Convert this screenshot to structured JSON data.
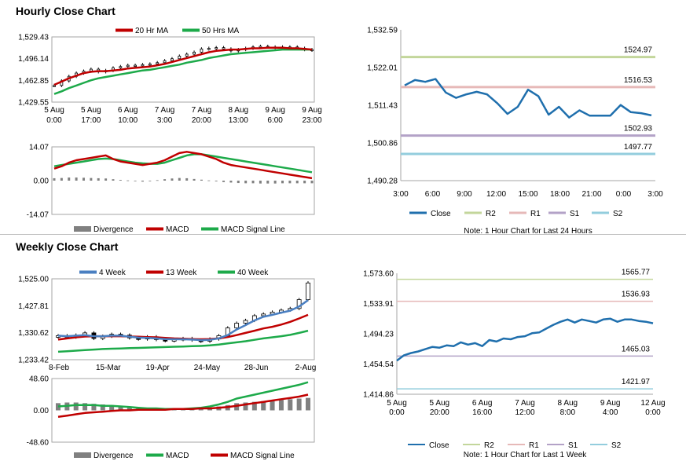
{
  "sections": {
    "hourly_title": "Hourly Close Chart",
    "weekly_title": "Weekly Close Chart"
  },
  "colors": {
    "red": "#c00000",
    "green": "#1daa4a",
    "blue": "#4a7fc1",
    "close_blue": "#1f6fad",
    "r2": "#c3d69b",
    "r1": "#e6b9b8",
    "s1": "#b3a2c7",
    "s2": "#93cddd",
    "divergence": "#808080"
  },
  "chart_data": [
    {
      "id": "hourly_price",
      "type": "line",
      "title": "Hourly Close Chart",
      "legend": [
        "20 Hr MA",
        "50 Hrs MA"
      ],
      "yticks": [
        "1,529.43",
        "1,496.14",
        "1,462.85",
        "1,429.55"
      ],
      "ylim": [
        1429.55,
        1529.43
      ],
      "xticks": [
        [
          "5 Aug",
          "0:00"
        ],
        [
          "5 Aug",
          "17:00"
        ],
        [
          "6 Aug",
          "10:00"
        ],
        [
          "7 Aug",
          "3:00"
        ],
        [
          "7 Aug",
          "20:00"
        ],
        [
          "8 Aug",
          "13:00"
        ],
        [
          "9 Aug",
          "6:00"
        ],
        [
          "9 Aug",
          "23:00"
        ]
      ],
      "series": [
        {
          "name": "Close",
          "values": [
            1455,
            1462,
            1469,
            1474,
            1477,
            1480,
            1476,
            1478,
            1482,
            1484,
            1486,
            1485,
            1487,
            1488,
            1490,
            1493,
            1496,
            1500,
            1503,
            1506,
            1511,
            1512,
            1513,
            1511,
            1508,
            1510,
            1512,
            1514,
            1515,
            1514,
            1513,
            1514,
            1514,
            1512,
            1510,
            1509
          ]
        },
        {
          "name": "20 Hr MA",
          "values": [
            1456,
            1461,
            1466,
            1470,
            1474,
            1476,
            1477,
            1477,
            1478,
            1479,
            1481,
            1482,
            1483,
            1484,
            1486,
            1488,
            1491,
            1494,
            1497,
            1500,
            1503,
            1506,
            1508,
            1509,
            1510,
            1510,
            1511,
            1512,
            1512,
            1513,
            1513,
            1513,
            1512,
            1512,
            1511,
            1510
          ]
        },
        {
          "name": "50 Hrs MA",
          "values": [
            1442,
            1446,
            1451,
            1455,
            1459,
            1463,
            1466,
            1468,
            1470,
            1472,
            1474,
            1476,
            1478,
            1479,
            1481,
            1483,
            1485,
            1487,
            1490,
            1492,
            1494,
            1497,
            1499,
            1501,
            1503,
            1504,
            1505,
            1506,
            1507,
            1508,
            1509,
            1510,
            1510,
            1510,
            1510,
            1510
          ]
        }
      ]
    },
    {
      "id": "hourly_macd",
      "type": "line",
      "legend": [
        "Divergence",
        "MACD",
        "MACD Signal Line"
      ],
      "yticks": [
        "14.07",
        "0.00",
        "-14.07"
      ],
      "ylim": [
        -14.07,
        14.07
      ],
      "series": [
        {
          "name": "MACD",
          "values": [
            5,
            6,
            7.5,
            8.5,
            9,
            9.5,
            10,
            10.5,
            9,
            8,
            7.5,
            7,
            6.5,
            7,
            7.5,
            8.5,
            10,
            11.5,
            12,
            11.5,
            11,
            10,
            9,
            7.5,
            6.5,
            6,
            5.5,
            5,
            4.5,
            4,
            3.5,
            3,
            2.5,
            2,
            1.5,
            1
          ]
        },
        {
          "name": "MACD Signal Line",
          "values": [
            6,
            6.5,
            7,
            7.5,
            8,
            8.5,
            9,
            9.2,
            9,
            8.5,
            8,
            7.5,
            7.2,
            7,
            7,
            7.5,
            8.5,
            9.5,
            10.5,
            11,
            11,
            10.5,
            10,
            9.5,
            9,
            8.5,
            8,
            7.5,
            7,
            6.5,
            6,
            5.5,
            5,
            4.5,
            4,
            3.5
          ]
        },
        {
          "name": "Divergence",
          "values": [
            1,
            1.1,
            1.3,
            1.3,
            1.2,
            1.1,
            1,
            0.9,
            0.6,
            0.3,
            0.1,
            -0.2,
            -0.4,
            -0.2,
            0.2,
            0.6,
            0.9,
            1.1,
            1,
            0.7,
            0.4,
            0.1,
            -0.3,
            -0.6,
            -0.8,
            -1,
            -1.1,
            -1.1,
            -1.2,
            -1.2,
            -1.2,
            -1.1,
            -1.1,
            -1.1,
            -1.1,
            -1.1
          ]
        }
      ]
    },
    {
      "id": "hourly_close_24h",
      "type": "line",
      "yticks": [
        "1,532.59",
        "1,522.01",
        "1,511.43",
        "1,500.86",
        "1,490.28"
      ],
      "ylim": [
        1490.28,
        1532.59
      ],
      "xticks": [
        "3:00",
        "6:00",
        "9:00",
        "12:00",
        "15:00",
        "18:00",
        "21:00",
        "0:00",
        "3:00"
      ],
      "levels": [
        {
          "name": "R2",
          "value": 1524.97,
          "label": "1524.97"
        },
        {
          "name": "R1",
          "value": 1516.53,
          "label": "1516.53"
        },
        {
          "name": "S1",
          "value": 1502.93,
          "label": "1502.93"
        },
        {
          "name": "S2",
          "value": 1497.77,
          "label": "1497.77"
        }
      ],
      "series": [
        {
          "name": "Close",
          "values": [
            1517,
            1518.5,
            1518,
            1518.8,
            1515,
            1513.5,
            1514.5,
            1515.2,
            1514.5,
            1512,
            1509,
            1511,
            1515.8,
            1514,
            1508.8,
            1511,
            1508,
            1510,
            1508.5,
            1508.5,
            1508.5,
            1511.5,
            1509.5,
            1509.2,
            1508.6
          ]
        }
      ],
      "legend": [
        "Close",
        "R2",
        "R1",
        "S1",
        "S2"
      ],
      "note": "Note: 1 Hour Chart for Last 24 Hours"
    },
    {
      "id": "weekly_price",
      "type": "line",
      "title": "Weekly Close Chart",
      "legend": [
        "4 Week",
        "13 Week",
        "40 Week"
      ],
      "yticks": [
        "1,525.00",
        "1,427.81",
        "1,330.62",
        "1,233.42"
      ],
      "ylim": [
        1233.42,
        1525.0
      ],
      "xticks": [
        "8-Feb",
        "15-Mar",
        "19-Apr",
        "24-May",
        "28-Jun",
        "2-Aug"
      ],
      "series": [
        {
          "name": "Close",
          "values": [
            1320,
            1315,
            1322,
            1330,
            1310,
            1318,
            1325,
            1322,
            1312,
            1308,
            1316,
            1306,
            1302,
            1306,
            1310,
            1304,
            1300,
            1308,
            1320,
            1348,
            1365,
            1375,
            1392,
            1398,
            1405,
            1412,
            1418,
            1450,
            1510
          ]
        },
        {
          "name": "4 Week",
          "values": [
            1320,
            1318,
            1320,
            1322,
            1318,
            1318,
            1320,
            1320,
            1316,
            1313,
            1312,
            1310,
            1308,
            1307,
            1307,
            1306,
            1304,
            1305,
            1310,
            1322,
            1342,
            1358,
            1375,
            1388,
            1395,
            1403,
            1410,
            1425,
            1448
          ]
        },
        {
          "name": "13 Week",
          "values": [
            1306,
            1310,
            1314,
            1317,
            1318,
            1318,
            1318,
            1318,
            1317,
            1316,
            1315,
            1314,
            1312,
            1310,
            1309,
            1308,
            1307,
            1308,
            1310,
            1315,
            1322,
            1330,
            1338,
            1346,
            1352,
            1360,
            1370,
            1382,
            1395
          ]
        },
        {
          "name": "40 Week",
          "values": [
            1262,
            1264,
            1266,
            1268,
            1270,
            1272,
            1273,
            1274,
            1275,
            1276,
            1277,
            1278,
            1279,
            1280,
            1281,
            1282,
            1283,
            1285,
            1288,
            1292,
            1296,
            1300,
            1305,
            1310,
            1314,
            1318,
            1323,
            1330,
            1338
          ]
        }
      ]
    },
    {
      "id": "weekly_macd",
      "type": "line",
      "legend": [
        "Divergence",
        "MACD",
        "MACD Signal Line"
      ],
      "yticks": [
        "48.60",
        "0.00",
        "-48.60"
      ],
      "ylim": [
        -48.6,
        48.6
      ],
      "series": [
        {
          "name": "MACD",
          "values": [
            6,
            7,
            8,
            8,
            8,
            7,
            7,
            6,
            5,
            4,
            3,
            3,
            2,
            2,
            2,
            3,
            4,
            6,
            9,
            13,
            18,
            21,
            24,
            27,
            30,
            33,
            36,
            39,
            43
          ]
        },
        {
          "name": "MACD Signal Line",
          "values": [
            -10,
            -8,
            -6,
            -4,
            -3,
            -2,
            -1,
            0,
            0,
            1,
            1,
            1,
            1,
            2,
            2,
            2,
            3,
            3,
            4,
            5,
            7,
            9,
            11,
            13,
            15,
            17,
            19,
            21,
            24
          ]
        },
        {
          "name": "Divergence",
          "values": [
            11,
            12,
            12,
            11,
            10,
            9,
            8,
            7,
            5,
            4,
            3,
            2,
            2,
            1,
            1,
            1,
            2,
            4,
            6,
            8,
            11,
            12,
            13,
            14,
            15,
            16,
            17,
            18,
            19
          ]
        }
      ]
    },
    {
      "id": "weekly_close_1w",
      "type": "line",
      "yticks": [
        "1,573.60",
        "1,533.91",
        "1,494.23",
        "1,454.54",
        "1,414.86"
      ],
      "ylim": [
        1414.86,
        1573.6
      ],
      "xticks": [
        [
          "5 Aug",
          "0:00"
        ],
        [
          "5 Aug",
          "20:00"
        ],
        [
          "6 Aug",
          "16:00"
        ],
        [
          "7 Aug",
          "12:00"
        ],
        [
          "8 Aug",
          "8:00"
        ],
        [
          "9 Aug",
          "4:00"
        ],
        [
          "12 Aug",
          "0:00"
        ]
      ],
      "levels": [
        {
          "name": "R2",
          "value": 1565.77,
          "label": "1565.77"
        },
        {
          "name": "R1",
          "value": 1536.93,
          "label": "1536.93"
        },
        {
          "name": "S1",
          "value": 1465.03,
          "label": "1465.03"
        },
        {
          "name": "S2",
          "value": 1421.97,
          "label": "1421.97"
        }
      ],
      "series": [
        {
          "name": "Close",
          "values": [
            1459,
            1466,
            1469,
            1471,
            1474,
            1477,
            1476,
            1479,
            1478,
            1483,
            1480,
            1482,
            1478,
            1486,
            1484,
            1488,
            1487,
            1490,
            1491,
            1495,
            1496,
            1501,
            1506,
            1510,
            1513,
            1509,
            1513,
            1511,
            1509,
            1513,
            1514,
            1510,
            1513,
            1513,
            1511,
            1510,
            1508
          ]
        }
      ],
      "legend": [
        "Close",
        "R2",
        "R1",
        "S1",
        "S2"
      ],
      "note": "Note: 1 Hour Chart for Last 1 Week"
    }
  ]
}
